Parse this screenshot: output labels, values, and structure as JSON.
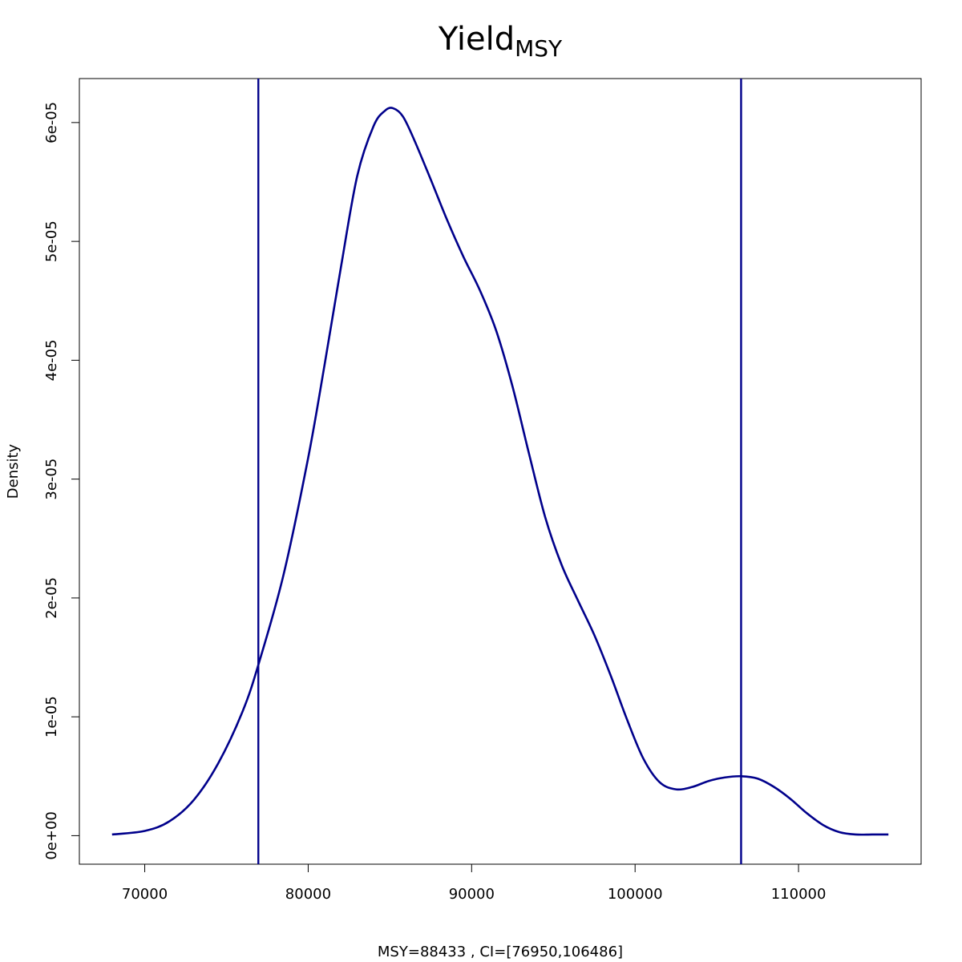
{
  "chart_data": {
    "type": "line",
    "title": "Yield",
    "title_subscript": "MSY",
    "xlabel": "MSY=88433 , CI=[76950,106486]",
    "ylabel": "Density",
    "xlim": [
      66000,
      117500
    ],
    "ylim": [
      -2.4e-06,
      6.37e-05
    ],
    "x_ticks": [
      70000,
      80000,
      90000,
      100000,
      110000
    ],
    "x_tick_labels": [
      "70000",
      "80000",
      "90000",
      "100000",
      "110000"
    ],
    "y_ticks": [
      0,
      1e-05,
      2e-05,
      3e-05,
      4e-05,
      5e-05,
      6e-05
    ],
    "y_tick_labels": [
      "0e+00",
      "1e-05",
      "2e-05",
      "3e-05",
      "4e-05",
      "5e-05",
      "6e-05"
    ],
    "grid": false,
    "line_color": "#00008b",
    "vlines": [
      76950,
      106486
    ],
    "series": [
      {
        "x": [
          68000,
          70000,
          71500,
          73000,
          74500,
          76000,
          77000,
          78500,
          80000,
          81000,
          82000,
          83000,
          84000,
          84700,
          85200,
          85800,
          86500,
          87500,
          88500,
          89500,
          90500,
          91500,
          92500,
          93500,
          94500,
          95500,
          96500,
          97500,
          98500,
          99500,
          100500,
          101500,
          102500,
          103500,
          104500,
          105500,
          106500,
          107500,
          108500,
          109500,
          110500,
          111500,
          112500,
          113500,
          114500,
          115500
        ],
        "y": [
          1e-07,
          4e-07,
          1.2e-06,
          3e-06,
          6.1e-06,
          1.05e-05,
          1.46e-05,
          2.2e-05,
          3.18e-05,
          3.96e-05,
          4.78e-05,
          5.55e-05,
          5.97e-05,
          6.1e-05,
          6.12e-05,
          6.05e-05,
          5.85e-05,
          5.52e-05,
          5.18e-05,
          4.87e-05,
          4.59e-05,
          4.25e-05,
          3.78e-05,
          3.22e-05,
          2.68e-05,
          2.28e-05,
          1.98e-05,
          1.69e-05,
          1.35e-05,
          9.8e-06,
          6.5e-06,
          4.5e-06,
          3.9e-06,
          4.1e-06,
          4.6e-06,
          4.9e-06,
          5e-06,
          4.8e-06,
          4.1e-06,
          3.1e-06,
          1.9e-06,
          9e-07,
          3e-07,
          1e-07,
          1e-07,
          1e-07
        ]
      }
    ]
  }
}
